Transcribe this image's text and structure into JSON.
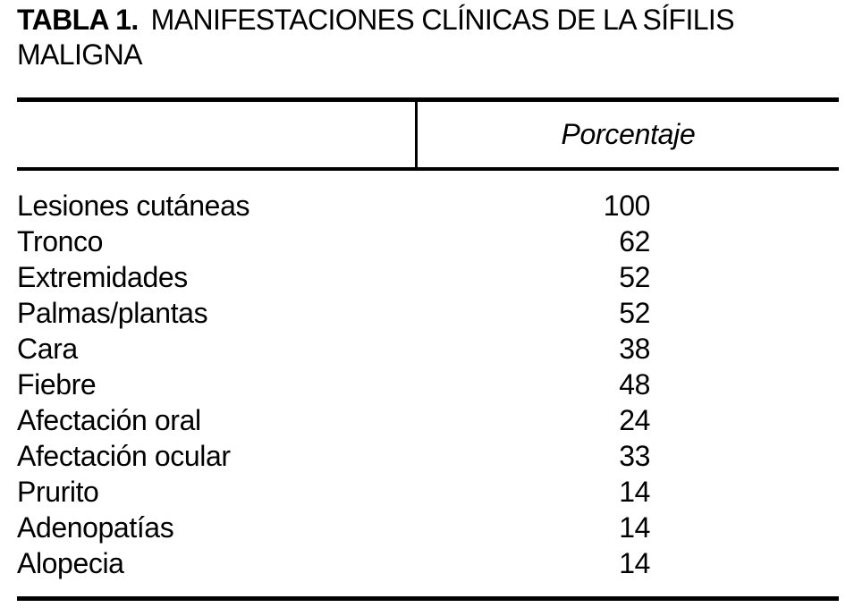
{
  "table": {
    "title": {
      "label": "TABLA 1.",
      "line1": "MANIFESTACIONES CLÍNICAS DE LA SÍFILIS",
      "line2": "MALIGNA"
    },
    "header": {
      "value_column": "Porcentaje"
    },
    "rows": [
      {
        "label": "Lesiones cutáneas",
        "value": "100"
      },
      {
        "label": "Tronco",
        "value": "62"
      },
      {
        "label": "Extremidades",
        "value": "52"
      },
      {
        "label": "Palmas/plantas",
        "value": "52"
      },
      {
        "label": "Cara",
        "value": "38"
      },
      {
        "label": "Fiebre",
        "value": "48"
      },
      {
        "label": "Afectación oral",
        "value": "24"
      },
      {
        "label": "Afectación ocular",
        "value": "33"
      },
      {
        "label": "Prurito",
        "value": "14"
      },
      {
        "label": "Adenopatías",
        "value": "14"
      },
      {
        "label": "Alopecia",
        "value": "14"
      }
    ],
    "colors": {
      "text": "#000000",
      "background": "#ffffff",
      "rule": "#000000"
    }
  },
  "chart_data": {
    "type": "table",
    "title": "TABLA 1. MANIFESTACIONES CLÍNICAS DE LA SÍFILIS MALIGNA",
    "columns": [
      "",
      "Porcentaje"
    ],
    "categories": [
      "Lesiones cutáneas",
      "Tronco",
      "Extremidades",
      "Palmas/plantas",
      "Cara",
      "Fiebre",
      "Afectación oral",
      "Afectación ocular",
      "Prurito",
      "Adenopatías",
      "Alopecia"
    ],
    "values": [
      100,
      62,
      52,
      52,
      38,
      48,
      24,
      33,
      14,
      14,
      14
    ]
  }
}
